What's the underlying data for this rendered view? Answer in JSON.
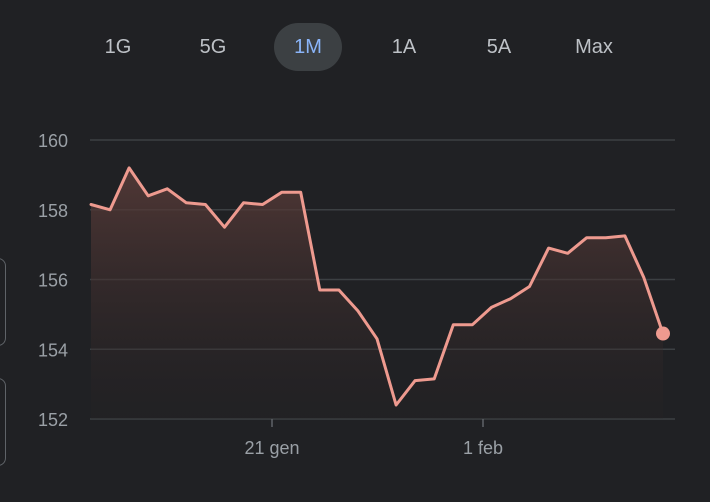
{
  "range_tabs": [
    {
      "label": "1G",
      "active": false
    },
    {
      "label": "5G",
      "active": false
    },
    {
      "label": "1M",
      "active": true
    },
    {
      "label": "1A",
      "active": false
    },
    {
      "label": "5A",
      "active": false
    },
    {
      "label": "Max",
      "active": false
    }
  ],
  "colors": {
    "background": "#202124",
    "line": "#ee9a8f",
    "grid": "#3c4043",
    "active_tab_text": "#8ab4f8",
    "active_tab_bg": "#3c4043",
    "axis_text": "#9aa0a6"
  },
  "chart_data": {
    "type": "area",
    "y_ticks": [
      "160",
      "158",
      "156",
      "154",
      "152"
    ],
    "x_ticks": [
      "21 gen",
      "1 feb"
    ],
    "ylim": [
      152,
      160
    ],
    "grid": true,
    "series": [
      {
        "values": [
          158.15,
          158.0,
          159.2,
          158.4,
          158.6,
          158.2,
          158.15,
          157.5,
          158.2,
          158.15,
          158.5,
          158.5,
          155.7,
          155.7,
          155.1,
          154.3,
          152.4,
          153.1,
          153.15,
          154.7,
          154.7,
          155.2,
          155.45,
          155.8,
          156.9,
          156.75,
          157.2,
          157.2,
          157.25,
          156.05,
          154.45
        ]
      }
    ]
  }
}
